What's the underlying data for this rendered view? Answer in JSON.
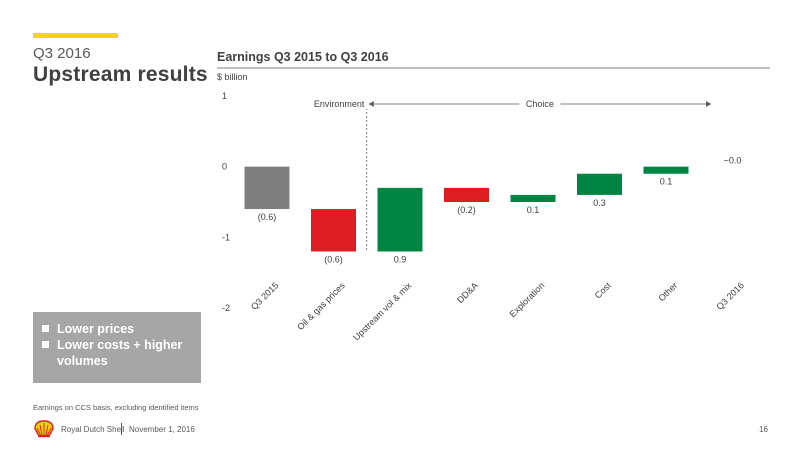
{
  "slide": {
    "kicker": "Q3 2016",
    "title": "Upstream results",
    "bullets": [
      "Lower prices",
      "Lower costs + higher volumes"
    ],
    "footnote": "Earnings on CCS basis, excluding identified items",
    "company": "Royal Dutch Shell",
    "date": "November 1, 2016",
    "page_number": "16",
    "accent_color": "#f5d60a",
    "box_color": "#a6a6a6"
  },
  "chart_data": {
    "type": "bar",
    "subtype": "waterfall",
    "title": "Earnings Q3 2015 to Q3 2016",
    "ylabel": "$ billion",
    "ylim": [
      -2,
      1
    ],
    "yticks": [
      1,
      0,
      -1,
      -2
    ],
    "grid": false,
    "categories": [
      "Q3 2015",
      "Oil & gas prices",
      "Upstream vol & mix",
      "DD&A",
      "Exploration",
      "Cost",
      "Other",
      "Q3 2016"
    ],
    "bars": [
      {
        "category": "Q3 2015",
        "start": 0,
        "end": -0.6,
        "label": "(0.6)",
        "color": "#7f7f7f"
      },
      {
        "category": "Oil & gas prices",
        "start": -0.6,
        "end": -1.2,
        "label": "(0.6)",
        "color": "#dd1d21"
      },
      {
        "category": "Upstream vol & mix",
        "start": -1.2,
        "end": -0.3,
        "label": "0.9",
        "color": "#008443"
      },
      {
        "category": "DD&A",
        "start": -0.3,
        "end": -0.5,
        "label": "(0.2)",
        "color": "#dd1d21"
      },
      {
        "category": "Exploration",
        "start": -0.5,
        "end": -0.4,
        "label": "0.1",
        "color": "#008443"
      },
      {
        "category": "Cost",
        "start": -0.4,
        "end": -0.1,
        "label": "0.3",
        "color": "#008443"
      },
      {
        "category": "Other",
        "start": -0.1,
        "end": 0.0,
        "label": "0.1",
        "color": "#008443"
      },
      {
        "category": "Q3 2016",
        "start": 0,
        "end": 0.0,
        "label": "~0.0",
        "color": "#7f7f7f"
      }
    ],
    "annotations": {
      "environment": "Environment",
      "choice": "Choice"
    }
  }
}
